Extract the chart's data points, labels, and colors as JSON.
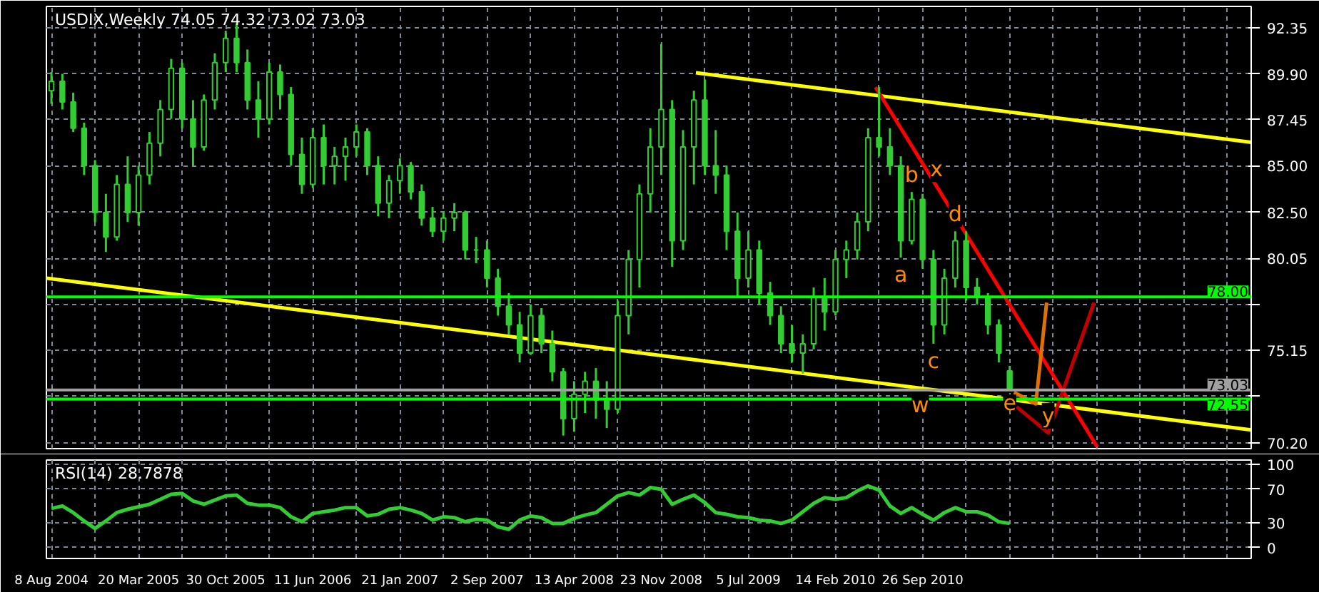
{
  "chart_data": [
    {
      "type": "candlestick",
      "title": "USDIX,Weekly  74.05 74.32 73.02 73.03",
      "color": "#32cd32",
      "x": [
        "2004-08-08",
        "2004-09-05",
        "2004-10-03",
        "2004-10-31",
        "2004-11-28",
        "2004-12-26",
        "2005-01-23",
        "2005-02-20",
        "2005-03-20",
        "2005-04-17",
        "2005-05-15",
        "2005-06-12",
        "2005-07-10",
        "2005-08-07",
        "2005-09-04",
        "2005-10-02",
        "2005-10-30",
        "2005-11-27",
        "2005-12-25",
        "2006-01-22",
        "2006-02-19",
        "2006-03-19",
        "2006-04-16",
        "2006-05-14",
        "2006-06-11",
        "2006-07-09",
        "2006-08-06",
        "2006-09-03",
        "2006-10-01",
        "2006-10-29",
        "2006-11-26",
        "2006-12-24",
        "2007-01-21",
        "2007-02-18",
        "2007-03-18",
        "2007-04-15",
        "2007-05-13",
        "2007-06-10",
        "2007-07-08",
        "2007-08-05",
        "2007-09-02",
        "2007-09-30",
        "2007-10-28",
        "2007-11-25",
        "2007-12-23",
        "2008-01-20",
        "2008-02-17",
        "2008-03-16",
        "2008-04-13",
        "2008-05-11",
        "2008-06-08",
        "2008-07-06",
        "2008-08-03",
        "2008-08-31",
        "2008-09-28",
        "2008-10-26",
        "2008-11-23",
        "2008-12-21",
        "2009-01-18",
        "2009-02-15",
        "2009-03-15",
        "2009-04-12",
        "2009-05-10",
        "2009-06-07",
        "2009-07-05",
        "2009-08-02",
        "2009-08-30",
        "2009-09-27",
        "2009-10-25",
        "2009-11-22",
        "2009-12-20",
        "2010-01-17",
        "2010-02-14",
        "2010-03-14",
        "2010-04-11",
        "2010-05-09",
        "2010-06-06",
        "2010-07-04",
        "2010-08-01",
        "2010-08-29",
        "2010-09-26",
        "2010-10-24",
        "2010-11-21",
        "2010-12-19",
        "2011-01-16",
        "2011-02-13",
        "2011-03-13",
        "2011-04-10",
        "2011-05-08"
      ],
      "ohlc": [
        [
          89.0,
          90.0,
          88.3,
          89.5
        ],
        [
          89.5,
          89.9,
          88.0,
          88.4
        ],
        [
          88.4,
          88.9,
          86.8,
          87.0
        ],
        [
          87.0,
          87.3,
          84.5,
          85.0
        ],
        [
          85.0,
          85.3,
          82.0,
          82.5
        ],
        [
          82.5,
          83.5,
          80.4,
          81.2
        ],
        [
          81.2,
          84.5,
          81.0,
          84.0
        ],
        [
          84.0,
          85.5,
          82.0,
          82.5
        ],
        [
          82.5,
          85.0,
          81.8,
          84.5
        ],
        [
          84.5,
          86.8,
          84.0,
          86.2
        ],
        [
          86.2,
          88.5,
          85.5,
          88.0
        ],
        [
          88.0,
          90.7,
          87.5,
          90.2
        ],
        [
          90.2,
          90.5,
          87.0,
          87.5
        ],
        [
          87.5,
          88.5,
          85.0,
          86.0
        ],
        [
          86.0,
          88.8,
          85.8,
          88.5
        ],
        [
          88.5,
          91.0,
          88.0,
          90.5
        ],
        [
          90.5,
          92.2,
          90.0,
          91.8
        ],
        [
          91.8,
          92.6,
          90.0,
          90.5
        ],
        [
          90.5,
          91.2,
          88.0,
          88.5
        ],
        [
          88.5,
          89.5,
          86.5,
          87.5
        ],
        [
          87.5,
          90.5,
          87.2,
          90.0
        ],
        [
          90.0,
          90.4,
          88.0,
          88.8
        ],
        [
          88.8,
          89.2,
          85.0,
          85.6
        ],
        [
          85.6,
          86.5,
          83.5,
          84.0
        ],
        [
          84.0,
          87.0,
          83.8,
          86.5
        ],
        [
          86.5,
          87.2,
          84.0,
          85.0
        ],
        [
          85.0,
          86.0,
          84.0,
          85.5
        ],
        [
          85.5,
          86.5,
          84.2,
          86.0
        ],
        [
          86.0,
          87.2,
          85.5,
          86.8
        ],
        [
          86.8,
          87.0,
          84.5,
          85.0
        ],
        [
          85.0,
          85.5,
          82.3,
          83.0
        ],
        [
          83.0,
          84.5,
          82.2,
          84.2
        ],
        [
          84.2,
          85.4,
          83.5,
          85.0
        ],
        [
          85.0,
          85.2,
          83.2,
          83.6
        ],
        [
          83.6,
          84.0,
          81.8,
          82.2
        ],
        [
          82.2,
          82.8,
          81.2,
          81.5
        ],
        [
          81.5,
          82.5,
          81.0,
          82.2
        ],
        [
          82.2,
          83.0,
          81.5,
          82.5
        ],
        [
          82.5,
          82.6,
          80.0,
          80.5
        ],
        [
          80.5,
          81.2,
          79.8,
          80.5
        ],
        [
          80.5,
          81.0,
          78.5,
          79.0
        ],
        [
          79.0,
          79.5,
          77.0,
          77.5
        ],
        [
          77.5,
          78.2,
          76.0,
          76.5
        ],
        [
          76.5,
          77.2,
          74.5,
          75.0
        ],
        [
          75.0,
          77.6,
          74.9,
          77.0
        ],
        [
          77.0,
          77.4,
          75.0,
          75.5
        ],
        [
          75.5,
          76.2,
          73.5,
          74.0
        ],
        [
          74.0,
          74.2,
          70.6,
          71.5
        ],
        [
          71.5,
          73.5,
          70.8,
          72.8
        ],
        [
          72.8,
          74.0,
          71.8,
          73.5
        ],
        [
          73.5,
          74.2,
          71.5,
          72.5
        ],
        [
          72.5,
          73.5,
          71.0,
          72.0
        ],
        [
          72.0,
          77.8,
          71.8,
          77.0
        ],
        [
          77.0,
          80.5,
          76.0,
          80.0
        ],
        [
          80.0,
          84.0,
          78.5,
          83.5
        ],
        [
          83.5,
          87.0,
          82.5,
          86.0
        ],
        [
          86.0,
          91.5,
          84.5,
          88.0
        ],
        [
          88.0,
          88.5,
          79.6,
          81.0
        ],
        [
          81.0,
          86.9,
          80.5,
          86.0
        ],
        [
          86.0,
          89.0,
          84.0,
          88.5
        ],
        [
          88.5,
          89.6,
          84.5,
          85.0
        ],
        [
          85.0,
          86.9,
          83.5,
          84.5
        ],
        [
          84.5,
          85.0,
          80.5,
          81.5
        ],
        [
          81.5,
          82.5,
          78.0,
          79.0
        ],
        [
          79.0,
          81.5,
          78.5,
          80.5
        ],
        [
          80.5,
          81.0,
          77.6,
          78.2
        ],
        [
          78.2,
          78.8,
          76.5,
          77.0
        ],
        [
          77.0,
          77.5,
          75.0,
          75.5
        ],
        [
          75.5,
          76.5,
          74.5,
          75.0
        ],
        [
          75.0,
          76.0,
          73.9,
          75.5
        ],
        [
          75.5,
          78.5,
          75.2,
          78.0
        ],
        [
          78.0,
          79.0,
          76.2,
          77.2
        ],
        [
          77.2,
          80.5,
          77.0,
          80.0
        ],
        [
          80.0,
          81.0,
          79.0,
          80.5
        ],
        [
          80.5,
          82.5,
          80.0,
          82.0
        ],
        [
          82.0,
          87.0,
          81.5,
          86.5
        ],
        [
          86.5,
          89.2,
          85.5,
          86.0
        ],
        [
          86.0,
          87.0,
          84.5,
          85.0
        ],
        [
          85.0,
          85.5,
          80.1,
          81.0
        ],
        [
          81.0,
          83.6,
          80.8,
          83.2
        ],
        [
          83.2,
          83.5,
          79.5,
          80.0
        ],
        [
          80.0,
          80.5,
          75.5,
          76.5
        ],
        [
          76.5,
          79.5,
          76.0,
          79.0
        ],
        [
          79.0,
          81.5,
          78.5,
          81.0
        ],
        [
          81.0,
          81.5,
          77.8,
          78.5
        ],
        [
          78.5,
          79.0,
          77.6,
          78.0
        ],
        [
          78.0,
          78.2,
          76.0,
          76.5
        ],
        [
          76.5,
          76.8,
          74.5,
          75.0
        ],
        [
          74.05,
          74.32,
          73.02,
          73.03
        ]
      ],
      "series": [
        {
          "type": "line",
          "color": "#ffff00",
          "x": [
            "2004-07-26",
            "2013-01-18"
          ],
          "values": [
            79.0,
            70.9
          ]
        },
        {
          "type": "line",
          "color": "#ffff00",
          "x": [
            "2009-02-20",
            "2013-01-18"
          ],
          "values": [
            89.96,
            86.25
          ]
        },
        {
          "type": "line",
          "color": "#ff0000",
          "x": [
            "2010-05-28",
            "2011-12-19"
          ],
          "values": [
            89.19,
            70.0
          ]
        },
        {
          "type": "line",
          "color": "#e07000",
          "x": [
            "2011-05-19",
            "2011-07-14",
            "2011-08-11"
          ],
          "values": [
            72.91,
            72.29,
            77.69
          ]
        },
        {
          "type": "line",
          "color": "#c00000",
          "x": [
            "2011-05-26",
            "2011-08-15",
            "2011-12-11"
          ],
          "values": [
            72.13,
            70.74,
            77.69
          ]
        }
      ],
      "annotations": [
        {
          "text": "a",
          "x": "2010-08-01",
          "y": 80.1
        },
        {
          "text": "b",
          "x": "2010-08-29",
          "y": 83.6
        },
        {
          "text": "c",
          "x": "2010-10-24",
          "y": 75.5
        },
        {
          "text": "d",
          "x": "2010-12-19",
          "y": 81.5
        },
        {
          "text": "e",
          "x": "2011-05-08",
          "y": 73.02
        },
        {
          "text": "x",
          "x": "2010-11-01",
          "y": 83.9
        },
        {
          "text": "w",
          "x": "2010-09-20",
          "y": 73.12
        },
        {
          "text": "y",
          "x": "2011-08-15",
          "y": 70.74
        }
      ],
      "ref_lines": [
        {
          "axis": "y",
          "value": 78.0,
          "label": "78.00",
          "color": "#00ff00"
        },
        {
          "axis": "y",
          "value": 73.03,
          "label": "73.03",
          "color": "#a0a0a0"
        },
        {
          "axis": "y",
          "value": 72.55,
          "label": "72.55",
          "color": "#00ff00"
        }
      ],
      "xlim": [
        "2004-07-26",
        "2013-01-18"
      ],
      "ylim": [
        69.9,
        93.5
      ],
      "xticks": [
        {
          "value": "2004-08-08",
          "label": null
        },
        {
          "value": "2004-11-28",
          "label": null
        },
        {
          "value": "2005-03-20",
          "label": null
        },
        {
          "value": "2005-07-10",
          "label": null
        },
        {
          "value": "2005-10-30",
          "label": null
        },
        {
          "value": "2006-02-19",
          "label": null
        },
        {
          "value": "2006-06-11",
          "label": null
        },
        {
          "value": "2006-10-01",
          "label": null
        },
        {
          "value": "2007-01-21",
          "label": null
        },
        {
          "value": "2007-05-13",
          "label": null
        },
        {
          "value": "2007-09-02",
          "label": null
        },
        {
          "value": "2007-12-23",
          "label": null
        },
        {
          "value": "2008-04-13",
          "label": null
        },
        {
          "value": "2008-08-03",
          "label": null
        },
        {
          "value": "2008-11-23",
          "label": null
        },
        {
          "value": "2009-03-15",
          "label": null
        },
        {
          "value": "2009-07-05",
          "label": null
        },
        {
          "value": "2009-10-25",
          "label": null
        },
        {
          "value": "2010-02-14",
          "label": null
        },
        {
          "value": "2010-06-06",
          "label": null
        },
        {
          "value": "2010-09-26",
          "label": null
        },
        {
          "value": "2011-01-16",
          "label": null
        },
        {
          "value": "2011-05-08",
          "label": null
        },
        {
          "value": "2011-08-28",
          "label": null
        },
        {
          "value": "2011-12-18",
          "label": null
        },
        {
          "value": "2012-04-08",
          "label": null
        },
        {
          "value": "2012-07-29",
          "label": null
        },
        {
          "value": "2012-11-18",
          "label": null
        }
      ],
      "yticks": [
        {
          "value": 70.2,
          "label": "70.20"
        },
        {
          "value": 72.7,
          "label": null
        },
        {
          "value": 75.15,
          "label": "75.15"
        },
        {
          "value": 77.6,
          "label": null
        },
        {
          "value": 80.05,
          "label": "80.05"
        },
        {
          "value": 82.5,
          "label": "82.50"
        },
        {
          "value": 85.0,
          "label": "85.00"
        },
        {
          "value": 87.45,
          "label": "87.45"
        },
        {
          "value": 89.9,
          "label": "89.90"
        },
        {
          "value": 92.35,
          "label": "92.35"
        }
      ],
      "grid": true,
      "tick_labels": "y"
    },
    {
      "type": "line",
      "title": "RSI(14) 28.7878",
      "x": [
        "2004-08-08",
        "2004-09-05",
        "2004-10-03",
        "2004-10-31",
        "2004-11-28",
        "2004-12-26",
        "2005-01-23",
        "2005-02-20",
        "2005-03-20",
        "2005-04-17",
        "2005-05-15",
        "2005-06-12",
        "2005-07-10",
        "2005-08-07",
        "2005-09-04",
        "2005-10-02",
        "2005-10-30",
        "2005-11-27",
        "2005-12-25",
        "2006-01-22",
        "2006-02-19",
        "2006-03-19",
        "2006-04-16",
        "2006-05-14",
        "2006-06-11",
        "2006-07-09",
        "2006-08-06",
        "2006-09-03",
        "2006-10-01",
        "2006-10-29",
        "2006-11-26",
        "2006-12-24",
        "2007-01-21",
        "2007-02-18",
        "2007-03-18",
        "2007-04-15",
        "2007-05-13",
        "2007-06-10",
        "2007-07-08",
        "2007-08-05",
        "2007-09-02",
        "2007-09-30",
        "2007-10-28",
        "2007-11-25",
        "2007-12-23",
        "2008-01-20",
        "2008-02-17",
        "2008-03-16",
        "2008-04-13",
        "2008-05-11",
        "2008-06-08",
        "2008-07-06",
        "2008-08-03",
        "2008-08-31",
        "2008-09-28",
        "2008-10-26",
        "2008-11-23",
        "2008-12-21",
        "2009-01-18",
        "2009-02-15",
        "2009-03-15",
        "2009-04-12",
        "2009-05-10",
        "2009-06-07",
        "2009-07-05",
        "2009-08-02",
        "2009-08-30",
        "2009-09-27",
        "2009-10-25",
        "2009-11-22",
        "2009-12-20",
        "2010-01-17",
        "2010-02-14",
        "2010-03-14",
        "2010-04-11",
        "2010-05-09",
        "2010-06-06",
        "2010-07-04",
        "2010-08-01",
        "2010-08-29",
        "2010-09-26",
        "2010-10-24",
        "2010-11-21",
        "2010-12-19",
        "2011-01-16",
        "2011-02-13",
        "2011-03-13",
        "2011-04-10",
        "2011-05-08"
      ],
      "series": [
        {
          "color": "#32cd32",
          "values": [
            47,
            50,
            42,
            32,
            23,
            32,
            42,
            46,
            49,
            52,
            58,
            64,
            65,
            56,
            52,
            57,
            62,
            63,
            53,
            51,
            51,
            48,
            37,
            31,
            41,
            43,
            45,
            48,
            48,
            38,
            40,
            46,
            48,
            45,
            41,
            33,
            37,
            36,
            31,
            34,
            33,
            25,
            22,
            33,
            38,
            36,
            29,
            29,
            35,
            39,
            42,
            52,
            62,
            66,
            63,
            72,
            70,
            52,
            58,
            63,
            54,
            42,
            40,
            37,
            36,
            33,
            32,
            29,
            33,
            43,
            53,
            60,
            58,
            60,
            68,
            74,
            69,
            50,
            41,
            48,
            40,
            33,
            42,
            48,
            43,
            43,
            39,
            31,
            29
          ]
        }
      ],
      "xlim": [
        "2004-07-26",
        "2013-01-18"
      ],
      "ylim": [
        -13,
        105
      ],
      "xticks": [
        {
          "value": "2004-08-08",
          "label": "8 Aug 2004"
        },
        {
          "value": "2004-11-28",
          "label": null
        },
        {
          "value": "2005-03-20",
          "label": "20 Mar 2005"
        },
        {
          "value": "2005-07-10",
          "label": null
        },
        {
          "value": "2005-10-30",
          "label": "30 Oct 2005"
        },
        {
          "value": "2006-02-19",
          "label": null
        },
        {
          "value": "2006-06-11",
          "label": "11 Jun 2006"
        },
        {
          "value": "2006-10-01",
          "label": null
        },
        {
          "value": "2007-01-21",
          "label": "21 Jan 2007"
        },
        {
          "value": "2007-05-13",
          "label": null
        },
        {
          "value": "2007-09-02",
          "label": "2 Sep 2007"
        },
        {
          "value": "2007-12-23",
          "label": null
        },
        {
          "value": "2008-04-13",
          "label": "13 Apr 2008"
        },
        {
          "value": "2008-08-03",
          "label": null
        },
        {
          "value": "2008-11-23",
          "label": "23 Nov 2008"
        },
        {
          "value": "2009-03-15",
          "label": null
        },
        {
          "value": "2009-07-05",
          "label": "5 Jul 2009"
        },
        {
          "value": "2009-10-25",
          "label": null
        },
        {
          "value": "2010-02-14",
          "label": "14 Feb 2010"
        },
        {
          "value": "2010-06-06",
          "label": null
        },
        {
          "value": "2010-09-26",
          "label": "26 Sep 2010"
        },
        {
          "value": "2011-01-16",
          "label": null
        },
        {
          "value": "2011-05-08",
          "label": null
        },
        {
          "value": "2011-08-28",
          "label": null
        },
        {
          "value": "2011-12-18",
          "label": null
        },
        {
          "value": "2012-04-08",
          "label": null
        },
        {
          "value": "2012-07-29",
          "label": null
        },
        {
          "value": "2012-11-18",
          "label": null
        }
      ],
      "yticks": [
        100,
        70,
        30,
        0
      ],
      "grid": true
    }
  ]
}
